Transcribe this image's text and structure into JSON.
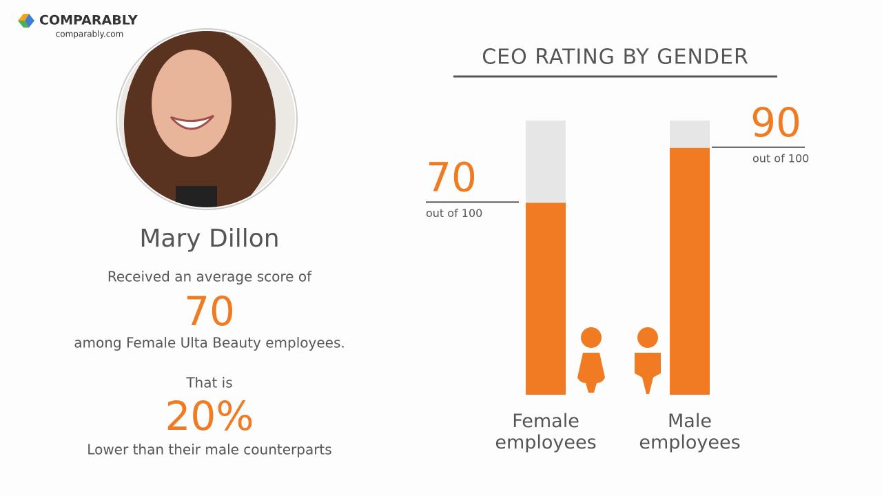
{
  "logo": {
    "brand": "COMPARABLY",
    "site": "comparably.com"
  },
  "profile": {
    "name": "Mary Dillon",
    "intro": "Received an average score of",
    "score": "70",
    "context": "among Female Ulta Beauty employees.",
    "lead": "That is",
    "difference": "20%",
    "comparison": "Lower than their male counterparts"
  },
  "chart_data": {
    "type": "bar",
    "title": "CEO RATING BY GENDER",
    "categories": [
      "Female employees",
      "Male employees"
    ],
    "values": [
      70,
      90
    ],
    "annotation": "out of 100",
    "ylim": [
      0,
      100
    ],
    "color": "#f07b22",
    "track_color": "#e6e6e6"
  }
}
